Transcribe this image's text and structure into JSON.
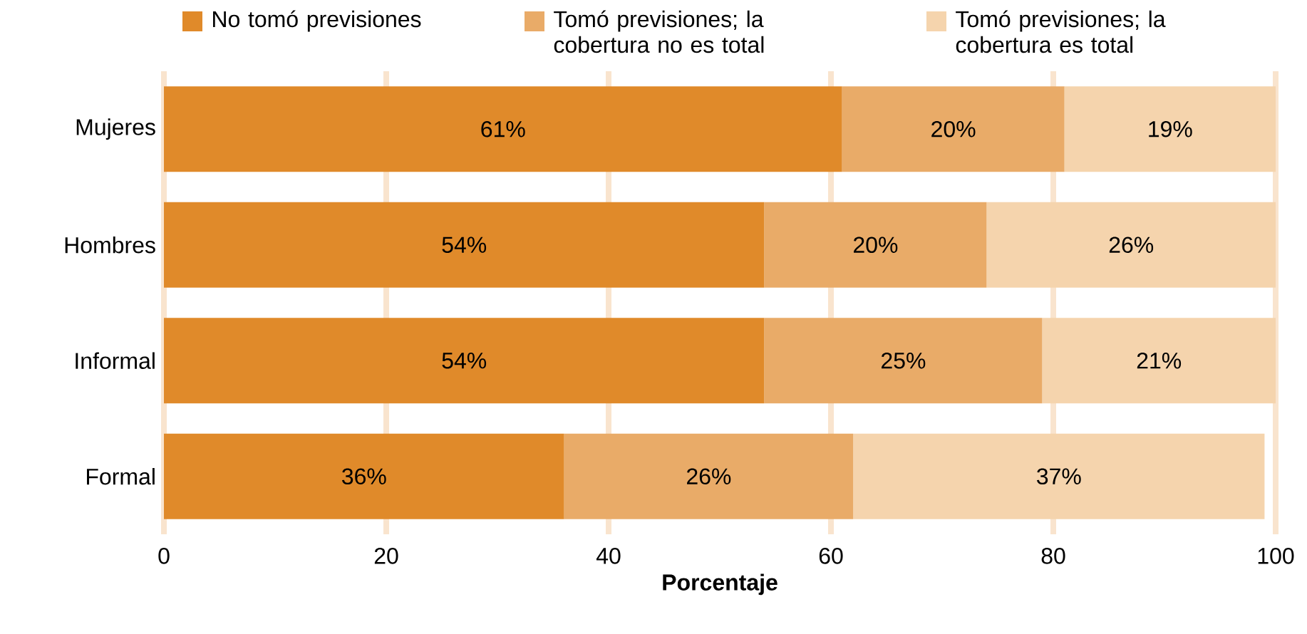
{
  "chart_data": {
    "type": "bar",
    "orientation": "horizontal",
    "stacked": true,
    "xlabel": "Porcentaje",
    "categories": [
      "Mujeres",
      "Hombres",
      "Informal",
      "Formal"
    ],
    "series": [
      {
        "name": "No tomó previsiones",
        "color": "#e08a2a",
        "values": [
          61,
          54,
          54,
          36
        ],
        "value_labels": [
          "61%",
          "54%",
          "54%",
          "36%"
        ]
      },
      {
        "name": "Tomó previsiones; la cobertura no es total",
        "color": "#e9ab68",
        "values": [
          20,
          20,
          25,
          26
        ],
        "value_labels": [
          "20%",
          "20%",
          "25%",
          "26%"
        ]
      },
      {
        "name": "Tomó previsiones; la cobertura es total",
        "color": "#f5d4ad",
        "values": [
          19,
          26,
          21,
          37
        ],
        "value_labels": [
          "19%",
          "26%",
          "21%",
          "37%"
        ]
      }
    ],
    "xlim": [
      0,
      100
    ],
    "xticks": [
      0,
      20,
      40,
      60,
      80,
      100
    ],
    "grid": "x",
    "legend": "top"
  }
}
